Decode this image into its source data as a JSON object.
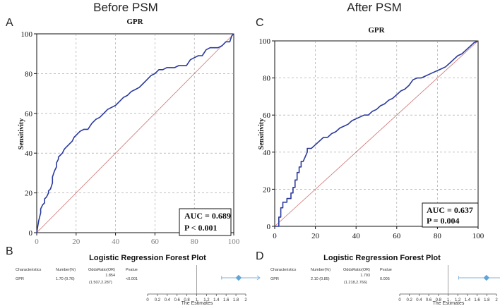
{
  "chart_data": [
    {
      "type": "line",
      "panel": "A",
      "header": "Before PSM",
      "title": "GPR",
      "ylabel": "Sensitivity",
      "xlabel": "",
      "xlim": [
        0,
        100
      ],
      "ylim": [
        0,
        100
      ],
      "yticks": [
        "0",
        "20",
        "40",
        "60",
        "80",
        "100"
      ],
      "xticks_visible": [
        "0",
        "20",
        "40",
        "60",
        "80",
        "100"
      ],
      "series": [
        {
          "name": "ROC",
          "x": [
            0,
            0.5,
            1,
            2,
            2,
            3,
            4,
            4,
            5,
            6,
            6,
            7,
            8,
            8,
            9,
            10,
            10,
            11,
            11,
            12,
            13,
            14,
            15,
            16,
            17,
            18,
            19,
            20,
            22,
            24,
            26,
            28,
            30,
            32,
            34,
            36,
            38,
            40,
            42,
            44,
            46,
            48,
            50,
            52,
            54,
            56,
            58,
            60,
            62,
            64,
            66,
            68,
            70,
            72,
            74,
            76,
            78,
            80,
            82,
            84,
            86,
            88,
            90,
            92,
            94,
            96,
            98,
            99,
            100
          ],
          "y": [
            0,
            3,
            6,
            10,
            12,
            14,
            15,
            17,
            18,
            20,
            21,
            22,
            25,
            28,
            31,
            33,
            35,
            37,
            38,
            39,
            40,
            42,
            43,
            44,
            45,
            46,
            48,
            49,
            51,
            52,
            52,
            55,
            57,
            58,
            60,
            62,
            63,
            64,
            66,
            68,
            69,
            71,
            72,
            73,
            75,
            77,
            79,
            80,
            82,
            82,
            83,
            83,
            83,
            84,
            84,
            84,
            87,
            88,
            89,
            89,
            92,
            93,
            93,
            93,
            94,
            96,
            96,
            99,
            100
          ]
        },
        {
          "name": "Reference",
          "x": [
            0,
            100
          ],
          "y": [
            0,
            100
          ]
        }
      ],
      "annotation": {
        "auc": "AUC = 0.689",
        "p": "P < 0.001"
      }
    },
    {
      "type": "line",
      "panel": "C",
      "header": "After PSM",
      "title": "GPR",
      "ylabel": "Sensitivity",
      "xlabel": "",
      "xlim": [
        0,
        100
      ],
      "ylim": [
        0,
        100
      ],
      "xticks": [
        "0",
        "20",
        "40",
        "60",
        "80",
        "100"
      ],
      "yticks": [
        "0",
        "20",
        "40",
        "60",
        "80",
        "100"
      ],
      "series": [
        {
          "name": "ROC",
          "x": [
            0,
            2,
            2,
            3,
            3,
            4,
            4,
            6,
            6,
            8,
            8,
            9,
            9,
            10,
            10,
            11,
            11,
            12,
            12,
            13,
            13,
            14,
            16,
            16,
            18,
            20,
            22,
            24,
            26,
            28,
            30,
            32,
            34,
            36,
            38,
            40,
            42,
            44,
            46,
            48,
            50,
            52,
            54,
            56,
            58,
            60,
            62,
            64,
            66,
            68,
            70,
            72,
            74,
            76,
            78,
            80,
            82,
            84,
            86,
            88,
            90,
            92,
            94,
            96,
            98,
            100
          ],
          "y": [
            0,
            0,
            5,
            5,
            10,
            10,
            13,
            13,
            15,
            15,
            18,
            18,
            21,
            21,
            25,
            25,
            29,
            29,
            32,
            32,
            35,
            35,
            40,
            42,
            42,
            44,
            46,
            48,
            48,
            50,
            51,
            53,
            54,
            55,
            57,
            58,
            59,
            60,
            60,
            62,
            63,
            65,
            66,
            68,
            69,
            71,
            73,
            74,
            76,
            79,
            80,
            80,
            81,
            82,
            83,
            84,
            85,
            86,
            88,
            90,
            92,
            93,
            95,
            97,
            99,
            100
          ]
        },
        {
          "name": "Reference",
          "x": [
            0,
            100
          ],
          "y": [
            0,
            100
          ]
        }
      ],
      "annotation": {
        "auc": "AUC = 0.637",
        "p": "P = 0.004"
      }
    },
    {
      "type": "forest",
      "panel": "B",
      "title": "Logistic Regression Forest Plot",
      "columns": [
        "Characteristics",
        "Number(%)",
        "OddsRatio(OR)",
        "Pvalue"
      ],
      "rows": [
        {
          "characteristic": "GPR",
          "number": "1.70 (0.76)",
          "or": "1.854",
          "ci": "(1.507,2.287)",
          "p": "<0.001",
          "or_value": 1.854,
          "ci_low": 1.507,
          "ci_high": 2.287
        }
      ],
      "xlim": [
        0,
        2
      ],
      "xticks": [
        "0",
        "0.2",
        "0.4",
        "0.6",
        "0.8",
        "1",
        "1.2",
        "1.4",
        "1.6",
        "1.8",
        "2"
      ],
      "ref_line": 1,
      "xlabel": "The Estimates"
    },
    {
      "type": "forest",
      "panel": "D",
      "title": "Logistic Regression Forest Plot",
      "columns": [
        "Characteristics",
        "Number(%)",
        "OddsRatio(OR)",
        "Pvalue"
      ],
      "rows": [
        {
          "characteristic": "GPR",
          "number": "2.10 (0.85)",
          "or": "1.793",
          "ci": "(1.218,2.766)",
          "p": "0.005",
          "or_value": 1.793,
          "ci_low": 1.218,
          "ci_high": 2.766
        }
      ],
      "xlim": [
        0,
        2
      ],
      "xticks": [
        "0",
        "0.2",
        "0.4",
        "0.6",
        "0.8",
        "1",
        "1.2",
        "1.4",
        "1.6",
        "1.8",
        "2"
      ],
      "ref_line": 1,
      "xlabel": "The Estimates"
    }
  ],
  "colors": {
    "roc": "#2a3a9c",
    "reference": "#d07070",
    "grid": "#9a9a9a",
    "marker": "#5fa5d8",
    "ci": "#7fb3dd",
    "refline": "#888888"
  }
}
